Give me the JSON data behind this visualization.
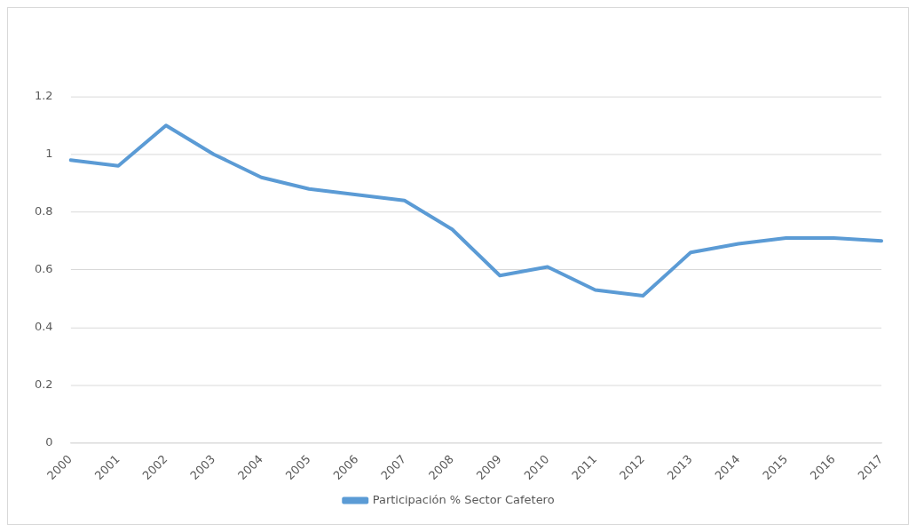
{
  "chart_data": {
    "type": "line",
    "categories": [
      "2000",
      "2001",
      "2002",
      "2003",
      "2004",
      "2005",
      "2006",
      "2007",
      "2008",
      "2009",
      "2010",
      "2011",
      "2012",
      "2013",
      "2014",
      "2015",
      "2016",
      "2017"
    ],
    "series": [
      {
        "name": "Participación % Sector Cafetero",
        "color": "#5b9bd5",
        "values": [
          0.98,
          0.96,
          1.1,
          1.0,
          0.92,
          0.88,
          0.86,
          0.84,
          0.74,
          0.58,
          0.61,
          0.53,
          0.51,
          0.66,
          0.69,
          0.71,
          0.71,
          0.7
        ]
      }
    ],
    "ylim": [
      0,
      1.2
    ],
    "yticks": [
      0,
      0.2,
      0.4,
      0.6,
      0.8,
      1,
      1.2
    ],
    "grid": "y",
    "legend": "bottom",
    "marker": "none",
    "line_style": "solid"
  }
}
